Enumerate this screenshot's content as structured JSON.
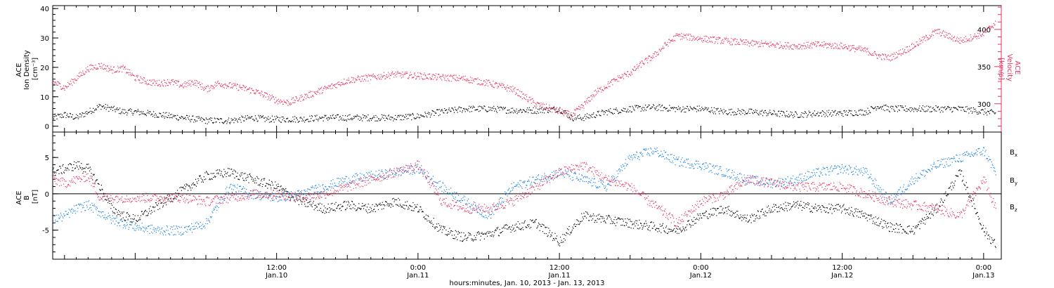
{
  "chart_data": [
    {
      "type": "scatter",
      "panel": "top",
      "title": "",
      "ylabel_left": [
        "ACE",
        "Ion Density",
        "[cm⁻³]"
      ],
      "ylabel_right": [
        "ACE",
        "Velocity",
        "[km/s]"
      ],
      "ylim_left": [
        -2,
        41
      ],
      "yticks_left": [
        0,
        10,
        20,
        30,
        40
      ],
      "ylim_right": [
        262,
        432
      ],
      "yticks_right": [
        300,
        350,
        400
      ],
      "yticks_right_labels": [
        "300",
        "350",
        "400"
      ],
      "grid": false,
      "x_range_hours": [
        -7,
        73.5
      ],
      "series": [
        {
          "color": "#000000",
          "axis": "left",
          "x_hours": [
            -7,
            -6,
            -5,
            -4,
            -3,
            -2,
            -1,
            0,
            1,
            2,
            3,
            4,
            5,
            6,
            7,
            8,
            9,
            10,
            11,
            12,
            14,
            16,
            18,
            20,
            22,
            24,
            26,
            28,
            30,
            32,
            34,
            36,
            37,
            38,
            39,
            40,
            42,
            44,
            46,
            48,
            50,
            52,
            54,
            56,
            58,
            60,
            62,
            63,
            64,
            66,
            68,
            70,
            72,
            73
          ],
          "values": [
            3,
            4,
            3,
            5,
            7,
            6,
            5,
            5,
            4.5,
            4,
            3.5,
            3,
            2.5,
            2,
            2,
            2,
            2.5,
            3,
            2.5,
            2.5,
            2.5,
            3,
            3,
            3,
            3,
            3.5,
            5,
            6,
            6,
            5.5,
            5.5,
            6,
            3,
            3,
            4,
            5,
            6,
            6.5,
            6,
            6,
            5,
            5,
            4.5,
            4,
            4.5,
            4.5,
            5,
            7,
            6,
            6,
            6,
            6,
            5,
            4.5
          ]
        },
        {
          "color": "#e6335f",
          "axis": "right",
          "x_hours": [
            -7,
            -6,
            -5,
            -4,
            -3,
            -2,
            -1,
            0,
            1,
            2,
            3,
            4,
            5,
            6,
            7,
            8,
            9,
            10,
            11,
            12,
            13,
            14,
            16,
            18,
            20,
            22,
            24,
            26,
            28,
            30,
            32,
            34,
            36,
            37,
            38,
            39,
            40,
            41,
            42,
            43,
            44,
            45,
            46,
            48,
            50,
            52,
            54,
            56,
            58,
            60,
            62,
            63,
            64,
            66,
            68,
            70,
            72,
            73
          ],
          "values": [
            330,
            322,
            335,
            348,
            352,
            346,
            348,
            335,
            330,
            328,
            330,
            325,
            330,
            320,
            328,
            325,
            322,
            318,
            312,
            305,
            302,
            308,
            320,
            332,
            336,
            340,
            338,
            336,
            334,
            328,
            320,
            300,
            290,
            285,
            298,
            315,
            325,
            335,
            342,
            355,
            365,
            380,
            392,
            388,
            385,
            382,
            380,
            378,
            380,
            378,
            372,
            365,
            362,
            378,
            398,
            385,
            395,
            410
          ]
        }
      ]
    },
    {
      "type": "scatter",
      "panel": "bottom",
      "title": "",
      "ylabel_left": [
        "ACE",
        "B",
        "[nT]"
      ],
      "ylim": [
        -9,
        8.5
      ],
      "yticks": [
        -5,
        0,
        5
      ],
      "ytick_labels": [
        "-5",
        "0",
        "5"
      ],
      "zero_line": true,
      "grid": false,
      "xlabel": "hours:minutes, Jan. 10, 2013 - Jan. 13, 2013",
      "xtick_labels": [
        {
          "hour": 12,
          "line1": "12:00",
          "line2": "Jan.10"
        },
        {
          "hour": 24,
          "line1": "0:00",
          "line2": "Jan.11"
        },
        {
          "hour": 36,
          "line1": "12:00",
          "line2": "Jan.11"
        },
        {
          "hour": 48,
          "line1": "0:00",
          "line2": "Jan.12"
        },
        {
          "hour": 60,
          "line1": "12:00",
          "line2": "Jan.12"
        },
        {
          "hour": 72,
          "line1": "0:00",
          "line2": "Jan.13"
        }
      ],
      "x_range_hours": [
        -7,
        73.5
      ],
      "legend_placement": "right",
      "series": [
        {
          "name": "B",
          "sub": "x",
          "color": "#000000",
          "x_hours": [
            -7,
            -6,
            -5,
            -4,
            -3,
            -2,
            -1,
            0,
            2,
            4,
            6,
            8,
            10,
            12,
            14,
            16,
            18,
            20,
            22,
            24,
            26,
            28,
            30,
            32,
            34,
            36,
            38,
            40,
            42,
            44,
            46,
            48,
            50,
            52,
            54,
            56,
            58,
            60,
            62,
            64,
            66,
            68,
            70,
            72,
            73
          ],
          "values": [
            3,
            3.5,
            4,
            3.5,
            1,
            -2,
            -3,
            -3.5,
            -1.5,
            0.5,
            2.5,
            3,
            2,
            1,
            -1,
            -2,
            -1.5,
            -2,
            -1,
            -2,
            -5,
            -6,
            -5.5,
            -4.5,
            -4,
            -6.5,
            -3,
            -3.5,
            -4,
            -4.5,
            -5,
            -3,
            -2,
            -3.5,
            -2,
            -1.5,
            -2,
            -2,
            -3,
            -4.5,
            -5,
            -2,
            3,
            -5,
            -7
          ]
        },
        {
          "name": "B",
          "sub": "y",
          "color": "#1a84e0",
          "x_hours": [
            -7,
            -6,
            -5,
            -4,
            -3,
            -2,
            -1,
            0,
            2,
            4,
            6,
            8,
            10,
            12,
            14,
            16,
            18,
            20,
            22,
            24,
            26,
            28,
            30,
            32,
            34,
            36,
            38,
            40,
            42,
            44,
            46,
            48,
            50,
            52,
            54,
            56,
            58,
            60,
            62,
            64,
            66,
            68,
            70,
            72,
            73
          ],
          "values": [
            -3.5,
            -3,
            -2,
            -1.5,
            -2.5,
            -3.5,
            -4,
            -4.5,
            -5,
            -5,
            -4,
            1,
            0,
            -0.5,
            0,
            1,
            2,
            2.5,
            3,
            3.5,
            1,
            -1,
            -3,
            1,
            2,
            3,
            2,
            1,
            5,
            6,
            4.5,
            4,
            3,
            2,
            1.5,
            2,
            3,
            3.5,
            3,
            -1,
            2,
            4,
            5,
            6,
            3
          ]
        },
        {
          "name": "B",
          "sub": "z",
          "color": "#e6335f",
          "x_hours": [
            -7,
            -6,
            -5,
            -4,
            -3,
            -2,
            -1,
            0,
            2,
            4,
            6,
            8,
            10,
            12,
            14,
            16,
            18,
            20,
            22,
            24,
            26,
            28,
            30,
            32,
            34,
            36,
            38,
            40,
            42,
            44,
            46,
            48,
            50,
            52,
            54,
            56,
            58,
            60,
            62,
            64,
            66,
            68,
            70,
            72,
            73
          ],
          "values": [
            2,
            1.5,
            2,
            2.5,
            -0.5,
            -0.5,
            -0.5,
            -0.5,
            -0.5,
            -0.5,
            -1,
            -0.5,
            0,
            0,
            -0.5,
            0,
            1,
            2,
            3,
            4,
            -1,
            -2,
            -2,
            -1,
            1,
            3,
            4,
            2,
            1,
            -1.5,
            -4,
            -1,
            0,
            2,
            1.5,
            1,
            1,
            1,
            0,
            -1,
            -1.5,
            -2,
            -3,
            2,
            -2
          ]
        }
      ]
    }
  ]
}
